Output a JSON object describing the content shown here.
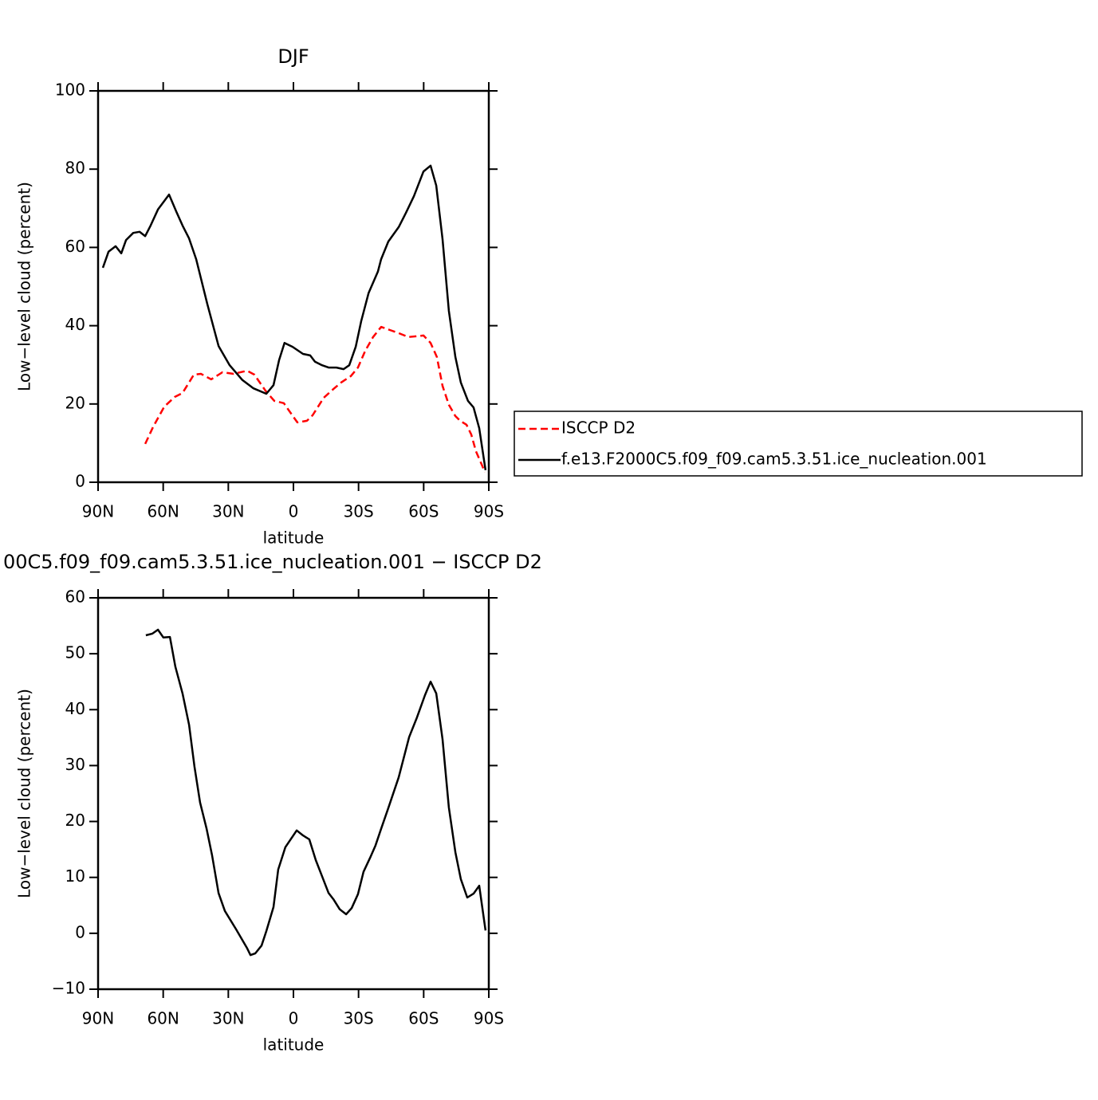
{
  "chart_data": [
    {
      "type": "line",
      "title": "DJF",
      "x_label": "latitude",
      "y_label": "Low−level cloud (percent)",
      "xlim": [
        90,
        -90
      ],
      "xticks": [
        {
          "value": 90,
          "label": "90N"
        },
        {
          "value": 60,
          "label": "60N"
        },
        {
          "value": 30,
          "label": "30N"
        },
        0,
        {
          "value": -30,
          "label": "30S"
        },
        {
          "value": -60,
          "label": "60S"
        },
        {
          "value": -90,
          "label": "90S"
        }
      ],
      "ylim": [
        0,
        100
      ],
      "yticks": [
        0,
        20,
        40,
        60,
        80,
        100
      ],
      "legend": "right",
      "series": [
        {
          "name": "ISCCP D2",
          "color": "#ff0000",
          "dash": true,
          "x": [
            68.3,
            64.7,
            59.5,
            54.7,
            51.1,
            45.9,
            42.6,
            37.9,
            32.7,
            27.6,
            21.3,
            18.0,
            12.9,
            8.8,
            4.4,
            1.8,
            -1.8,
            -6.2,
            -8.8,
            -14.0,
            -18.4,
            -22.0,
            -26.4,
            -29.7,
            -33.1,
            -36.7,
            -40.4,
            -44.4,
            -48.5,
            -52.9,
            -56.5,
            -59.9,
            -63.2,
            -66.1,
            -68.7,
            -71.6,
            -74.6,
            -76.8,
            -79.7,
            -81.9,
            -84.1,
            -86.3,
            -88.2
          ],
          "values": [
            9.8,
            14.1,
            19.3,
            21.8,
            22.8,
            27.5,
            27.7,
            26.3,
            28.1,
            27.7,
            28.5,
            27.5,
            23.4,
            20.8,
            20.2,
            18.1,
            15.3,
            15.7,
            17.1,
            21.6,
            23.8,
            25.5,
            27.1,
            29.3,
            33.6,
            37.1,
            39.7,
            38.9,
            38.1,
            37.1,
            37.3,
            37.5,
            35.6,
            32.0,
            24.6,
            19.8,
            16.9,
            15.7,
            14.7,
            12.2,
            7.9,
            5.1,
            2.6
          ]
        },
        {
          "name": "f.e13.F2000C5.f09_f09.cam5.3.51.ice_nucleation.001",
          "color": "#000000",
          "dash": false,
          "x": [
            87.8,
            85.2,
            81.9,
            79.3,
            77.1,
            73.8,
            70.9,
            68.3,
            65.8,
            62.4,
            57.3,
            54.0,
            51.1,
            48.1,
            44.8,
            39.7,
            34.5,
            29.4,
            23.5,
            18.4,
            12.5,
            9.2,
            6.6,
            4.1,
            0.4,
            -4.4,
            -7.7,
            -9.9,
            -13.2,
            -16.2,
            -19.8,
            -23.1,
            -25.7,
            -28.7,
            -31.2,
            -34.6,
            -38.9,
            -40.4,
            -43.7,
            -48.5,
            -51.8,
            -55.5,
            -59.9,
            -63.2,
            -65.8,
            -68.7,
            -71.6,
            -74.6,
            -77.1,
            -80.4,
            -83.0,
            -85.6,
            -88.5
          ],
          "values": [
            54.8,
            58.9,
            60.3,
            58.5,
            61.9,
            63.7,
            64.0,
            62.9,
            65.6,
            69.7,
            73.5,
            69.2,
            65.6,
            62.3,
            57.0,
            45.6,
            34.8,
            29.9,
            26.1,
            24.0,
            22.6,
            24.8,
            31.2,
            35.6,
            34.6,
            32.8,
            32.4,
            30.8,
            29.9,
            29.3,
            29.3,
            28.9,
            29.9,
            34.6,
            41.1,
            48.3,
            53.8,
            57.0,
            61.5,
            65.2,
            68.8,
            73.1,
            79.4,
            80.9,
            75.8,
            62.1,
            43.8,
            32.0,
            25.5,
            20.8,
            19.1,
            13.8,
            3.1
          ]
        }
      ]
    },
    {
      "type": "line",
      "title": "00C5.f09_f09.cam5.3.51.ice_nucleation.001 − ISCCP D2",
      "x_label": "latitude",
      "y_label": "Low−level cloud (percent)",
      "xlim": [
        90,
        -90
      ],
      "xticks": [
        {
          "value": 90,
          "label": "90N"
        },
        {
          "value": 60,
          "label": "60N"
        },
        {
          "value": 30,
          "label": "30N"
        },
        0,
        {
          "value": -30,
          "label": "30S"
        },
        {
          "value": -60,
          "label": "60S"
        },
        {
          "value": -90,
          "label": "90S"
        }
      ],
      "ylim": [
        -10,
        60
      ],
      "yticks": [
        {
          "value": -10,
          "label": "−10"
        },
        0,
        10,
        20,
        30,
        40,
        50,
        60
      ],
      "series": [
        {
          "color": "#000000",
          "dash": false,
          "x": [
            68.0,
            65.0,
            62.4,
            59.9,
            56.9,
            54.4,
            51.1,
            48.1,
            45.6,
            43.0,
            40.0,
            37.5,
            34.5,
            31.6,
            26.4,
            21.3,
            19.8,
            17.6,
            14.7,
            12.5,
            9.2,
            7.0,
            3.7,
            -1.5,
            -4.4,
            -7.3,
            -10.3,
            -13.2,
            -16.2,
            -18.4,
            -21.3,
            -24.3,
            -26.8,
            -29.7,
            -32.3,
            -35.3,
            -37.8,
            -40.4,
            -43.7,
            -48.5,
            -53.3,
            -56.9,
            -60.6,
            -63.2,
            -65.8,
            -68.7,
            -71.6,
            -74.6,
            -77.1,
            -80.1,
            -83.0,
            -85.6,
            -88.5
          ],
          "values": [
            53.3,
            53.6,
            54.3,
            52.9,
            53.0,
            47.7,
            42.9,
            37.3,
            29.8,
            23.4,
            18.7,
            14.0,
            7.2,
            4.0,
            0.7,
            -2.7,
            -3.9,
            -3.6,
            -2.2,
            0.4,
            4.7,
            11.4,
            15.4,
            18.4,
            17.5,
            16.8,
            13.1,
            10.2,
            7.2,
            6.1,
            4.3,
            3.4,
            4.5,
            7.0,
            11.0,
            13.5,
            15.7,
            18.7,
            22.4,
            27.9,
            35.1,
            38.6,
            42.6,
            45.0,
            42.9,
            34.7,
            22.5,
            14.5,
            9.7,
            6.4,
            7.1,
            8.5,
            0.5
          ]
        }
      ]
    }
  ]
}
